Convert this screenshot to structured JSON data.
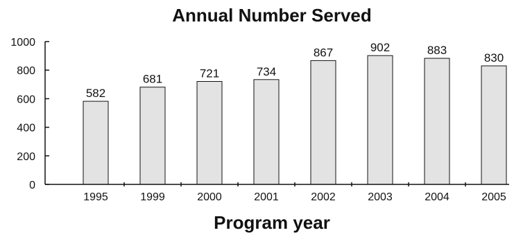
{
  "chart_data": {
    "type": "bar",
    "title": "Annual Number Served",
    "xlabel": "Program year",
    "ylabel": "",
    "categories": [
      "1995",
      "1999",
      "2000",
      "2001",
      "2002",
      "2003",
      "2004",
      "2005"
    ],
    "values": [
      582,
      681,
      721,
      734,
      867,
      902,
      883,
      830
    ],
    "value_labels": [
      "582",
      "681",
      "721",
      "734",
      "867",
      "902",
      "883",
      "830"
    ],
    "ylim": [
      0,
      1000
    ],
    "yticks": [
      0,
      200,
      400,
      600,
      800,
      1000
    ],
    "ytick_labels": [
      "0",
      "200",
      "400",
      "600",
      "800",
      "1000"
    ],
    "grid": false,
    "legend": "none",
    "colors": {
      "bar_fill": "#e3e3e3",
      "bar_stroke": "#111111",
      "text": "#111111"
    }
  }
}
